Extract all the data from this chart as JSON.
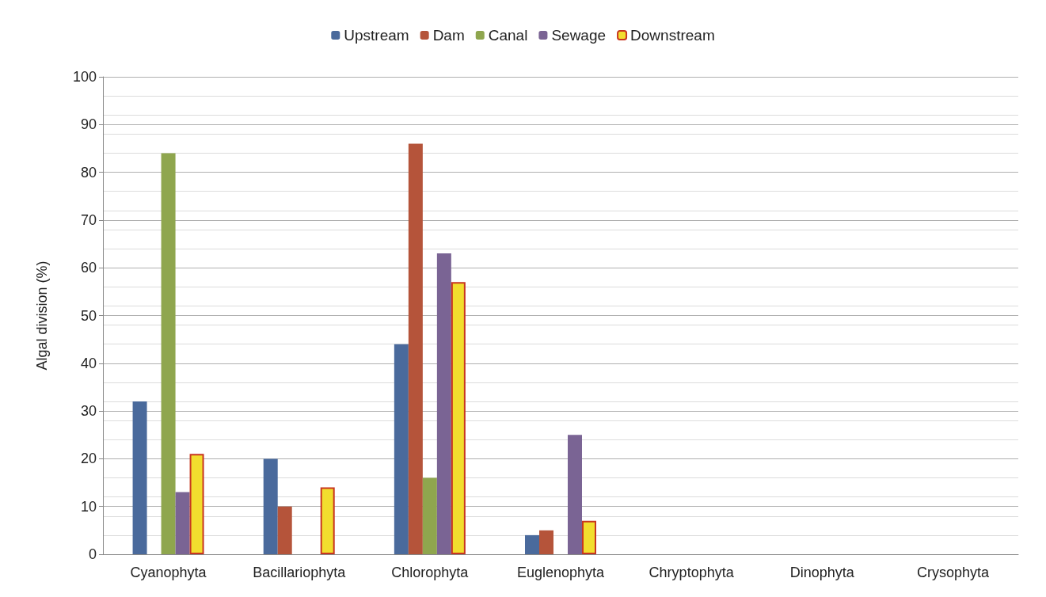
{
  "chart_data": {
    "type": "bar",
    "ylabel": "Algal division (%)",
    "categories": [
      "Cyanophyta",
      "Bacillariophyta",
      "Chlorophyta",
      "Euglenophyta",
      "Chryptophyta",
      "Dinophyta",
      "Crysophyta"
    ],
    "series": [
      {
        "name": "Upstream",
        "color": "#4a6a9c",
        "values": [
          32,
          20,
          44,
          4,
          0,
          0,
          0
        ]
      },
      {
        "name": "Dam",
        "color": "#b5543a",
        "values": [
          0,
          10,
          86,
          5,
          0,
          0,
          0
        ]
      },
      {
        "name": "Canal",
        "color": "#8fa64e",
        "values": [
          84,
          0,
          16,
          0,
          0,
          0,
          0
        ]
      },
      {
        "name": "Sewage",
        "color": "#7a6494",
        "values": [
          13,
          0,
          63,
          25,
          0,
          0,
          0
        ]
      },
      {
        "name": "Downstream",
        "color": "#f2de2e",
        "values": [
          21,
          14,
          57,
          7,
          0,
          0,
          0
        ]
      }
    ],
    "ylim": [
      0,
      100
    ],
    "yticks": [
      0,
      10,
      20,
      30,
      40,
      50,
      60,
      70,
      80,
      90,
      100
    ],
    "grid": "y",
    "legend": "top"
  }
}
